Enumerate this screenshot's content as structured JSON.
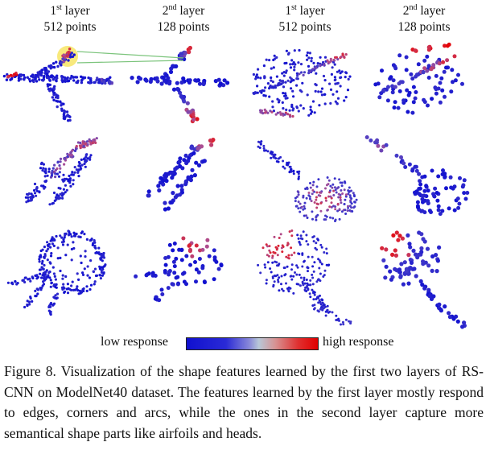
{
  "columns": [
    {
      "ordinal": "1",
      "suffix": "st",
      "word": "layer",
      "points": "512 points"
    },
    {
      "ordinal": "2",
      "suffix": "nd",
      "word": "layer",
      "points": "128 points"
    },
    {
      "ordinal": "1",
      "suffix": "st",
      "word": "layer",
      "points": "512 points"
    },
    {
      "ordinal": "2",
      "suffix": "nd",
      "word": "layer",
      "points": "128 points"
    }
  ],
  "legend": {
    "low": "low response",
    "high": "high response",
    "colors": {
      "low": "#1010d0",
      "mid": "#b8c8d8",
      "high": "#e00000"
    }
  },
  "caption": "Figure 8. Visualization of the shape features learned by the first two layers of RS-CNN on ModelNet40 dataset.  The features learned by the first layer mostly respond to edges, corners and arcs, while the ones in the second layer capture more semantical shape parts like airfoils and heads.",
  "shapes": [
    {
      "row": 1,
      "column": 1,
      "object": "airplane",
      "points": 512
    },
    {
      "row": 1,
      "column": 2,
      "object": "airplane",
      "points": 128
    },
    {
      "row": 1,
      "column": 3,
      "object": "bowl-like shape",
      "points": 512
    },
    {
      "row": 1,
      "column": 4,
      "object": "bowl-like shape",
      "points": 128
    },
    {
      "row": 2,
      "column": 1,
      "object": "person",
      "points": 512
    },
    {
      "row": 2,
      "column": 2,
      "object": "person",
      "points": 128
    },
    {
      "row": 2,
      "column": 3,
      "object": "guitar",
      "points": 512
    },
    {
      "row": 2,
      "column": 4,
      "object": "guitar",
      "points": 128
    },
    {
      "row": 3,
      "column": 1,
      "object": "plant",
      "points": 512
    },
    {
      "row": 3,
      "column": 2,
      "object": "plant",
      "points": 128
    },
    {
      "row": 3,
      "column": 3,
      "object": "lamp",
      "points": 512
    },
    {
      "row": 3,
      "column": 4,
      "object": "lamp",
      "points": 128
    }
  ]
}
